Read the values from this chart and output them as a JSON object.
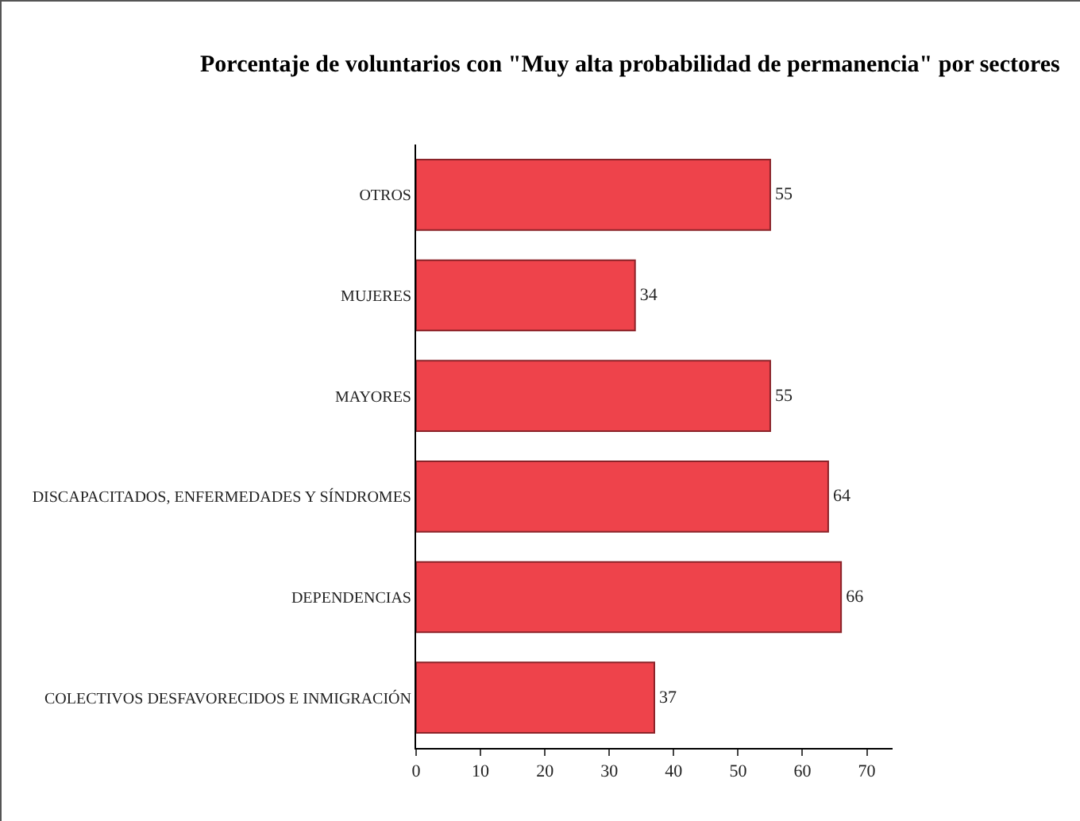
{
  "chart_data": {
    "type": "bar",
    "orientation": "horizontal",
    "title": "Porcentaje de voluntarios con \"Muy alta probabilidad de permanencia\" por sectores",
    "categories": [
      "OTROS",
      "MUJERES",
      "MAYORES",
      "DISCAPACITADOS, ENFERMEDADES Y SÍNDROMES",
      "DEPENDENCIAS",
      "COLECTIVOS DESFAVORECIDOS E INMIGRACIÓN"
    ],
    "values": [
      55,
      34,
      55,
      64,
      66,
      37
    ],
    "color": "#ee434b",
    "xlim": [
      0,
      74
    ],
    "xticks": [
      0,
      10,
      20,
      30,
      40,
      50,
      60,
      70
    ],
    "grid": false,
    "data_labels": true,
    "legend": false
  }
}
